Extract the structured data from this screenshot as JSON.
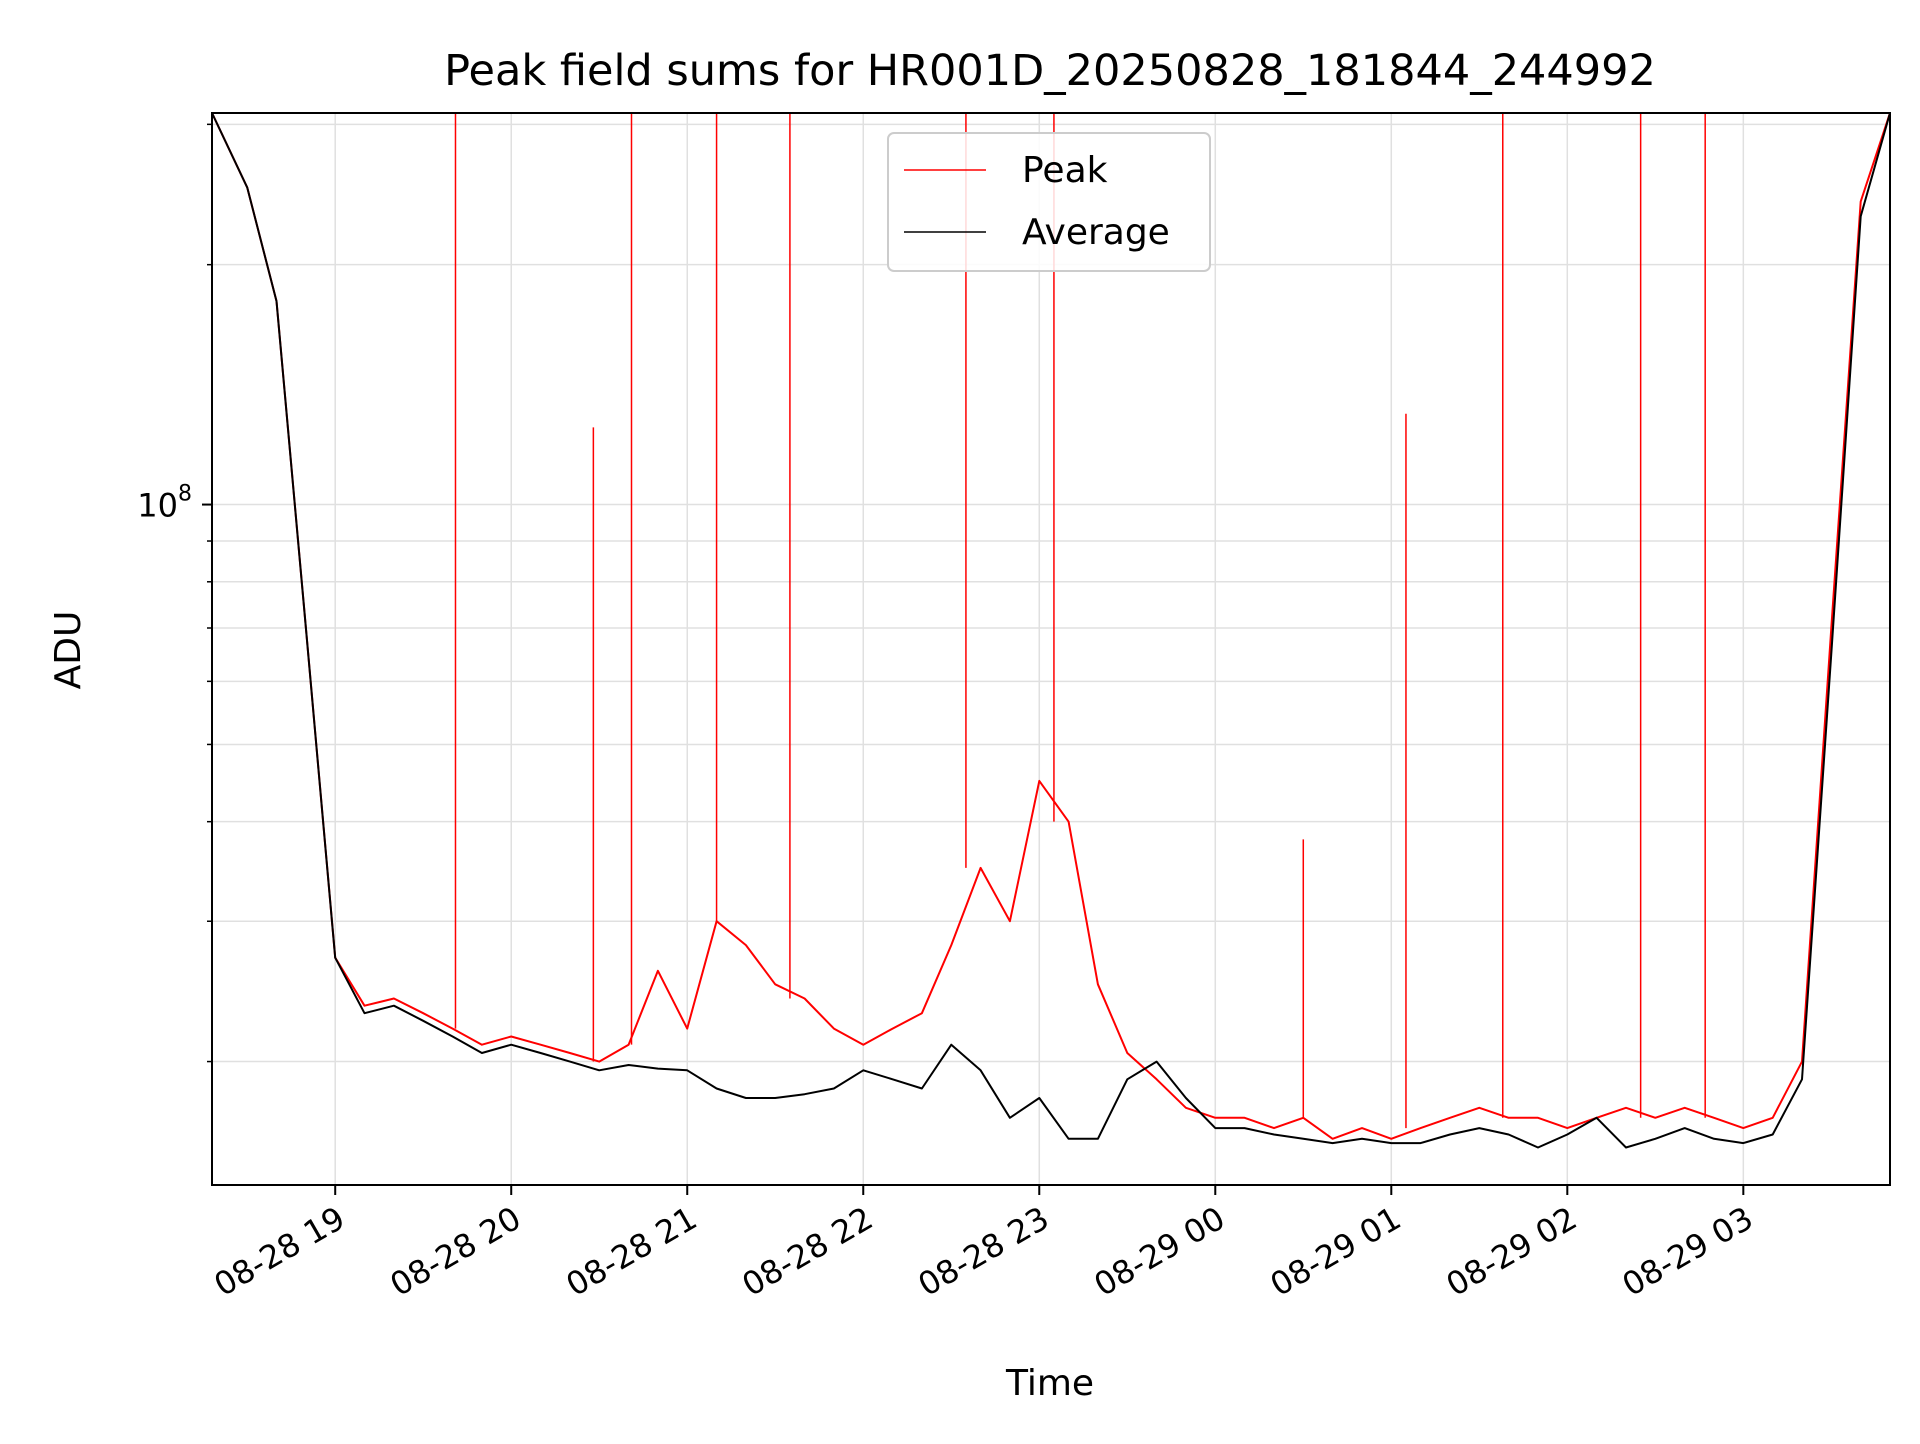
{
  "chart_data": {
    "type": "line",
    "title": "Peak field sums for HR001D_20250828_181844_244992",
    "xlabel": "Time",
    "ylabel": "ADU",
    "y_scale": "log",
    "grid": "major and minor",
    "legend_placement": "top-center",
    "xlim": [
      "2025-08-28 18:18",
      "2025-08-29 03:50"
    ],
    "ylim": [
      14000000,
      310000000
    ],
    "x_ticks": [
      "08-28 19",
      "08-28 20",
      "08-28 21",
      "08-28 22",
      "08-28 23",
      "08-29 00",
      "08-29 01",
      "08-29 02",
      "08-29 03"
    ],
    "y_ticks": [
      {
        "value": 100000000,
        "base": "10",
        "exponent": "8"
      }
    ],
    "series": [
      {
        "name": "Peak",
        "color": "#ff0000",
        "x": [
          "2025-08-28 18:18",
          "2025-08-28 18:30",
          "2025-08-28 18:40",
          "2025-08-28 18:50",
          "2025-08-28 19:00",
          "2025-08-28 19:10",
          "2025-08-28 19:20",
          "2025-08-28 19:30",
          "2025-08-28 19:40",
          "2025-08-28 19:50",
          "2025-08-28 20:00",
          "2025-08-28 20:10",
          "2025-08-28 20:20",
          "2025-08-28 20:30",
          "2025-08-28 20:40",
          "2025-08-28 20:50",
          "2025-08-28 21:00",
          "2025-08-28 21:10",
          "2025-08-28 21:20",
          "2025-08-28 21:30",
          "2025-08-28 21:40",
          "2025-08-28 21:50",
          "2025-08-28 22:00",
          "2025-08-28 22:10",
          "2025-08-28 22:20",
          "2025-08-28 22:30",
          "2025-08-28 22:40",
          "2025-08-28 22:50",
          "2025-08-28 23:00",
          "2025-08-28 23:10",
          "2025-08-28 23:20",
          "2025-08-28 23:30",
          "2025-08-28 23:40",
          "2025-08-28 23:50",
          "2025-08-29 00:00",
          "2025-08-29 00:10",
          "2025-08-29 00:20",
          "2025-08-29 00:30",
          "2025-08-29 00:40",
          "2025-08-29 00:50",
          "2025-08-29 01:00",
          "2025-08-29 01:10",
          "2025-08-29 01:20",
          "2025-08-29 01:30",
          "2025-08-29 01:40",
          "2025-08-29 01:50",
          "2025-08-29 02:00",
          "2025-08-29 02:10",
          "2025-08-29 02:20",
          "2025-08-29 02:30",
          "2025-08-29 02:40",
          "2025-08-29 02:50",
          "2025-08-29 03:00",
          "2025-08-29 03:10",
          "2025-08-29 03:20",
          "2025-08-29 03:30",
          "2025-08-29 03:40",
          "2025-08-29 03:50"
        ],
        "values": [
          310000000,
          250000000,
          180000000,
          70000000,
          27000000,
          23500000,
          24000000,
          23000000,
          22000000,
          21000000,
          21500000,
          21000000,
          20500000,
          20000000,
          21000000,
          26000000,
          22000000,
          30000000,
          28000000,
          25000000,
          24000000,
          22000000,
          21000000,
          22000000,
          23000000,
          28000000,
          35000000,
          30000000,
          45000000,
          40000000,
          25000000,
          20500000,
          19000000,
          17500000,
          17000000,
          17000000,
          16500000,
          17000000,
          16000000,
          16500000,
          16000000,
          16500000,
          17000000,
          17500000,
          17000000,
          17000000,
          16500000,
          17000000,
          17500000,
          17000000,
          17500000,
          17000000,
          16500000,
          17000000,
          20000000,
          70000000,
          240000000,
          310000000
        ]
      },
      {
        "name": "Average",
        "color": "#000000",
        "x": [
          "2025-08-28 18:18",
          "2025-08-28 18:30",
          "2025-08-28 18:40",
          "2025-08-28 18:50",
          "2025-08-28 19:00",
          "2025-08-28 19:10",
          "2025-08-28 19:20",
          "2025-08-28 19:30",
          "2025-08-28 19:40",
          "2025-08-28 19:50",
          "2025-08-28 20:00",
          "2025-08-28 20:10",
          "2025-08-28 20:20",
          "2025-08-28 20:30",
          "2025-08-28 20:40",
          "2025-08-28 20:50",
          "2025-08-28 21:00",
          "2025-08-28 21:10",
          "2025-08-28 21:20",
          "2025-08-28 21:30",
          "2025-08-28 21:40",
          "2025-08-28 21:50",
          "2025-08-28 22:00",
          "2025-08-28 22:10",
          "2025-08-28 22:20",
          "2025-08-28 22:30",
          "2025-08-28 22:40",
          "2025-08-28 22:50",
          "2025-08-28 23:00",
          "2025-08-28 23:10",
          "2025-08-28 23:20",
          "2025-08-28 23:30",
          "2025-08-28 23:40",
          "2025-08-28 23:50",
          "2025-08-29 00:00",
          "2025-08-29 00:10",
          "2025-08-29 00:20",
          "2025-08-29 00:30",
          "2025-08-29 00:40",
          "2025-08-29 00:50",
          "2025-08-29 01:00",
          "2025-08-29 01:10",
          "2025-08-29 01:20",
          "2025-08-29 01:30",
          "2025-08-29 01:40",
          "2025-08-29 01:50",
          "2025-08-29 02:00",
          "2025-08-29 02:10",
          "2025-08-29 02:20",
          "2025-08-29 02:30",
          "2025-08-29 02:40",
          "2025-08-29 02:50",
          "2025-08-29 03:00",
          "2025-08-29 03:10",
          "2025-08-29 03:20",
          "2025-08-29 03:30",
          "2025-08-29 03:40",
          "2025-08-29 03:50"
        ],
        "values": [
          310000000,
          250000000,
          180000000,
          70000000,
          27000000,
          23000000,
          23500000,
          22500000,
          21500000,
          20500000,
          21000000,
          20500000,
          20000000,
          19500000,
          19800000,
          19600000,
          19500000,
          18500000,
          18000000,
          18000000,
          18200000,
          18500000,
          19500000,
          19000000,
          18500000,
          21000000,
          19500000,
          17000000,
          18000000,
          16000000,
          16000000,
          19000000,
          20000000,
          18000000,
          16500000,
          16500000,
          16200000,
          16000000,
          15800000,
          16000000,
          15800000,
          15800000,
          16200000,
          16500000,
          16200000,
          15600000,
          16200000,
          17000000,
          15600000,
          16000000,
          16500000,
          16000000,
          15800000,
          16200000,
          19000000,
          65000000,
          230000000,
          310000000
        ]
      }
    ],
    "spike_note_values": [
      {
        "x": "2025-08-28 19:41",
        "y": 310000000
      },
      {
        "x": "2025-08-28 20:28",
        "y": 125000000
      },
      {
        "x": "2025-08-28 20:41",
        "y": 310000000
      },
      {
        "x": "2025-08-28 21:10",
        "y": 310000000
      },
      {
        "x": "2025-08-28 21:35",
        "y": 310000000
      },
      {
        "x": "2025-08-28 22:35",
        "y": 310000000
      },
      {
        "x": "2025-08-28 23:05",
        "y": 310000000
      },
      {
        "x": "2025-08-29 00:30",
        "y": 38000000
      },
      {
        "x": "2025-08-29 01:05",
        "y": 130000000
      },
      {
        "x": "2025-08-29 01:38",
        "y": 310000000
      },
      {
        "x": "2025-08-29 02:25",
        "y": 310000000
      },
      {
        "x": "2025-08-29 02:47",
        "y": 310000000
      }
    ]
  }
}
